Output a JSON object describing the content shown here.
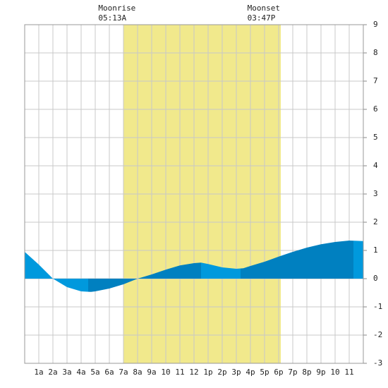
{
  "chart_data": {
    "type": "area",
    "moon_events": [
      {
        "label": "Moonrise",
        "time": "05:13A",
        "x": 5.217
      },
      {
        "label": "Moonset",
        "time": "03:47P",
        "x": 15.783
      }
    ],
    "daylight": [
      7,
      18.15
    ],
    "daylight_color": "#f1e98c",
    "x": [
      0,
      1,
      2,
      3,
      4,
      4.7,
      5,
      6,
      7,
      8,
      9,
      10,
      11,
      12,
      12.5,
      13,
      14,
      15,
      15.5,
      16,
      17,
      18,
      19,
      20,
      21,
      22,
      23,
      24
    ],
    "values": [
      0.95,
      0.5,
      0.0,
      -0.3,
      -0.45,
      -0.47,
      -0.45,
      -0.35,
      -0.2,
      0.0,
      0.15,
      0.32,
      0.47,
      0.55,
      0.57,
      0.52,
      0.4,
      0.35,
      0.37,
      0.45,
      0.6,
      0.78,
      0.95,
      1.1,
      1.22,
      1.3,
      1.35,
      1.33
    ],
    "extremes_x": [
      4.5,
      12.5,
      15.3,
      23.3
    ],
    "colors": [
      "#0099dd",
      "#0080c0"
    ],
    "categories": [
      "1a",
      "2a",
      "3a",
      "4a",
      "5a",
      "6a",
      "7a",
      "8a",
      "9a",
      "10",
      "11",
      "12",
      "1p",
      "2p",
      "3p",
      "4p",
      "5p",
      "6p",
      "7p",
      "8p",
      "9p",
      "10",
      "11"
    ],
    "xlim": [
      0,
      24
    ],
    "ylim": [
      -3,
      9
    ],
    "yticks": [
      -3,
      -2,
      -1,
      0,
      1,
      2,
      3,
      4,
      5,
      6,
      7,
      8,
      9
    ],
    "grid": true
  }
}
